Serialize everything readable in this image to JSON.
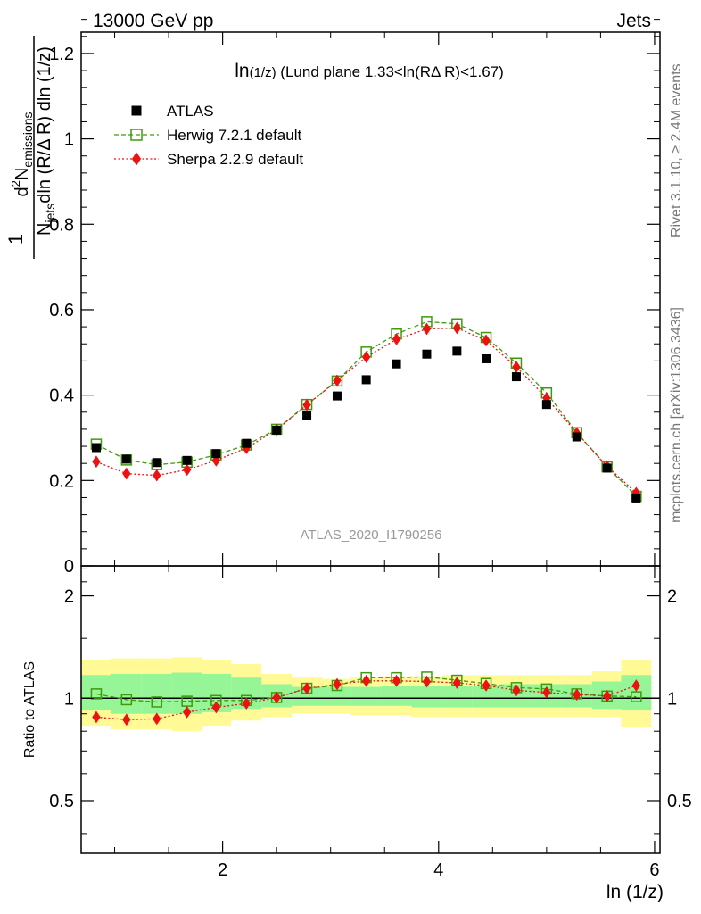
{
  "header": {
    "left": "13000 GeV pp",
    "right": "Jets"
  },
  "side_text": {
    "rivet": "Rivet 3.1.10, ≥ 2.4M events",
    "mcplots": "mcplots.cern.ch [arXiv:1306.3436]"
  },
  "watermark": "ATLAS_2020_I1790256",
  "chart_data": [
    {
      "type": "scatter",
      "title": "ln(1/z) (Lund plane 1.33<ln(RΔ R)<1.67)",
      "title_parts": {
        "main": "ln",
        "sub": "(1/z)",
        "rest": " (Lund plane 1.33<ln(RΔ R)<1.67)"
      },
      "ylabel": "1/N_jets d² N_emissions / dln (R/Δ R) dln (1/z)",
      "ylabel_parts": {
        "one": "1",
        "den_a": "N",
        "den_sub": "jets",
        "den_b": "dln (R/Δ R) dln (1/z)",
        "num_sup": "2",
        "num_a": "d",
        "num_b": "N",
        "num_sub": "emissions"
      },
      "xlim": [
        0.69,
        6.05
      ],
      "ylim": [
        0,
        1.25
      ],
      "yticks": [
        0,
        0.2,
        0.4,
        0.6,
        0.8,
        1,
        1.2
      ],
      "ytick_labels": [
        "0",
        "0.2",
        "0.4",
        "0.6",
        "0.8",
        "1",
        "1.2"
      ],
      "legend_position": "top-left",
      "x": [
        0.83,
        1.11,
        1.39,
        1.67,
        1.94,
        2.22,
        2.5,
        2.78,
        3.06,
        3.33,
        3.61,
        3.89,
        4.17,
        4.44,
        4.72,
        5.0,
        5.28,
        5.56,
        5.83
      ],
      "series": [
        {
          "name": "ATLAS",
          "color": "#000000",
          "marker": "square-filled",
          "values": [
            0.277,
            0.25,
            0.242,
            0.247,
            0.263,
            0.287,
            0.318,
            0.353,
            0.398,
            0.436,
            0.473,
            0.496,
            0.503,
            0.485,
            0.443,
            0.378,
            0.302,
            0.229,
            0.159
          ]
        },
        {
          "name": "Herwig 7.2.1 default",
          "color": "#3f9a0e",
          "marker": "square-open",
          "line": "dashed",
          "values": [
            0.285,
            0.248,
            0.237,
            0.243,
            0.26,
            0.283,
            0.32,
            0.378,
            0.433,
            0.501,
            0.543,
            0.572,
            0.567,
            0.535,
            0.475,
            0.405,
            0.312,
            0.232,
            0.163
          ]
        },
        {
          "name": "Sherpa 2.2.9 default",
          "color": "#ee1111",
          "marker": "diamond-filled",
          "line": "dotted",
          "values": [
            0.244,
            0.216,
            0.212,
            0.225,
            0.247,
            0.276,
            0.319,
            0.377,
            0.434,
            0.489,
            0.531,
            0.555,
            0.557,
            0.528,
            0.466,
            0.393,
            0.311,
            0.233,
            0.171
          ]
        }
      ]
    },
    {
      "type": "line",
      "ylabel": "Ratio to ATLAS",
      "xlabel": "ln (1/z)",
      "xlim": [
        0.69,
        6.05
      ],
      "ylim": [
        0.35,
        2.45
      ],
      "y_scale": "log",
      "xticks": [
        2,
        4,
        6
      ],
      "xtick_labels": [
        "2",
        "4",
        "6"
      ],
      "yticks": [
        0.5,
        1,
        2
      ],
      "ytick_labels": [
        "0.5",
        "1",
        "2"
      ],
      "x": [
        0.83,
        1.11,
        1.39,
        1.67,
        1.94,
        2.22,
        2.5,
        2.78,
        3.06,
        3.33,
        3.61,
        3.89,
        4.17,
        4.44,
        4.72,
        5.0,
        5.28,
        5.56,
        5.83
      ],
      "bin_edges": [
        0.69,
        0.97,
        1.25,
        1.53,
        1.81,
        2.08,
        2.36,
        2.64,
        2.92,
        3.19,
        3.47,
        3.75,
        4.03,
        4.31,
        4.58,
        4.86,
        5.14,
        5.42,
        5.69,
        5.97
      ],
      "band_yellow": {
        "color": "#fffa96",
        "low": [
          0.83,
          0.81,
          0.81,
          0.8,
          0.83,
          0.86,
          0.88,
          0.9,
          0.9,
          0.89,
          0.89,
          0.88,
          0.88,
          0.88,
          0.88,
          0.88,
          0.88,
          0.88,
          0.82
        ],
        "high": [
          1.3,
          1.31,
          1.31,
          1.32,
          1.3,
          1.26,
          1.18,
          1.15,
          1.14,
          1.15,
          1.16,
          1.16,
          1.17,
          1.17,
          1.17,
          1.17,
          1.17,
          1.2,
          1.3
        ]
      },
      "band_green": {
        "color": "#96f596",
        "low": [
          0.92,
          0.9,
          0.9,
          0.9,
          0.91,
          0.93,
          0.94,
          0.95,
          0.95,
          0.95,
          0.95,
          0.94,
          0.94,
          0.94,
          0.94,
          0.94,
          0.94,
          0.93,
          0.92
        ],
        "high": [
          1.17,
          1.18,
          1.18,
          1.19,
          1.18,
          1.15,
          1.1,
          1.08,
          1.08,
          1.08,
          1.09,
          1.09,
          1.09,
          1.09,
          1.1,
          1.1,
          1.1,
          1.12,
          1.17
        ]
      },
      "series": [
        {
          "name": "Herwig 7.2.1 default",
          "color": "#3f9a0e",
          "marker": "square-open",
          "line": "dashed",
          "values": [
            1.03,
            0.99,
            0.975,
            0.98,
            0.985,
            0.985,
            1.005,
            1.07,
            1.09,
            1.15,
            1.15,
            1.155,
            1.13,
            1.105,
            1.075,
            1.065,
            1.03,
            1.015,
            1.01
          ]
        },
        {
          "name": "Sherpa 2.2.9 default",
          "color": "#ee1111",
          "marker": "diamond-filled",
          "line": "dotted",
          "values": [
            0.88,
            0.865,
            0.87,
            0.91,
            0.94,
            0.965,
            1.005,
            1.07,
            1.1,
            1.125,
            1.125,
            1.12,
            1.11,
            1.09,
            1.055,
            1.04,
            1.025,
            1.015,
            1.09
          ]
        }
      ]
    }
  ]
}
